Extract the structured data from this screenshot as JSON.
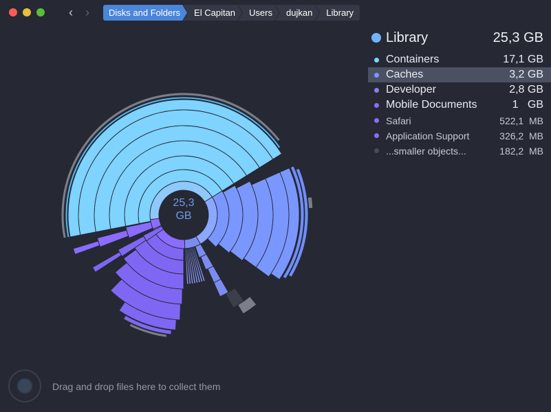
{
  "window": {
    "breadcrumbs": [
      "Disks and Folders",
      "El Capitan",
      "Users",
      "dujkan",
      "Library"
    ]
  },
  "nav": {
    "back_icon": "‹",
    "forward_icon": "›"
  },
  "center": {
    "line1": "25,3",
    "line2": "GB"
  },
  "panel": {
    "title": "Library",
    "total": "25,3 GB",
    "title_color": "#6fb4ff",
    "items": [
      {
        "name": "Containers",
        "size": "17,1 GB",
        "color": "#7fd3ff"
      },
      {
        "name": "Caches",
        "size": "3,2 GB",
        "color": "#7a97ff",
        "selected": true
      },
      {
        "name": "Developer",
        "size": "2,8 GB",
        "color": "#8a7cff"
      },
      {
        "name": "Mobile Documents",
        "size": "1   GB",
        "color": "#8a6cff"
      },
      {
        "name": "Safari",
        "size": "522,1  MB",
        "color": "#8a6cff",
        "small": true
      },
      {
        "name": "Application Support",
        "size": "326,2  MB",
        "color": "#8a6cff",
        "small": true
      },
      {
        "name": "...smaller objects...",
        "size": "182,2  MB",
        "color": "#4a4d58",
        "small": true
      }
    ]
  },
  "footer": {
    "drop_text": "Drag and drop files here to collect them"
  }
}
